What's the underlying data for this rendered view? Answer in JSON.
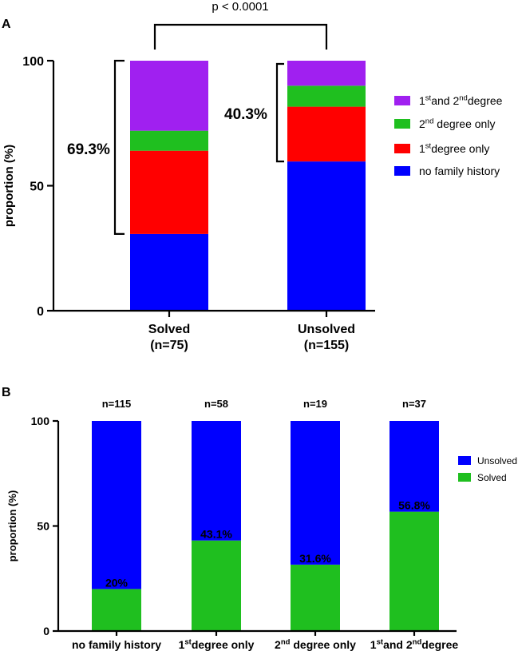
{
  "colors": {
    "purple": "#a020f0",
    "green": "#1fbf1f",
    "red": "#ff0000",
    "blue": "#0000ff"
  },
  "chart_data": [
    {
      "panel": "A",
      "type": "bar",
      "stacked": true,
      "title": "",
      "ylabel": "proportion (%)",
      "xlabel": "",
      "ylim": [
        0,
        100
      ],
      "yticks": [
        "0",
        "50",
        "100"
      ],
      "categories": [
        "Solved",
        "Unsolved"
      ],
      "category_subs": [
        "(n=75)",
        "(n=155)"
      ],
      "series": [
        {
          "name": "no family history",
          "color": "#0000ff",
          "values": [
            30.7,
            59.7
          ]
        },
        {
          "name": "1st degree only",
          "color": "#ff0000",
          "values": [
            33.3,
            21.9
          ]
        },
        {
          "name": "2nd degree only",
          "color": "#1fbf1f",
          "values": [
            8.0,
            8.4
          ]
        },
        {
          "name": "1st and 2nd degree",
          "color": "#a020f0",
          "values": [
            28.0,
            10.0
          ]
        }
      ],
      "legend": [
        {
          "base": "1",
          "sup": "st",
          "rest1": "and 2",
          "sup2": "nd",
          "rest2": "degree",
          "color": "#a020f0"
        },
        {
          "base": "2",
          "sup": "nd",
          "rest1": " degree only",
          "sup2": "",
          "rest2": "",
          "color": "#1fbf1f"
        },
        {
          "base": "1",
          "sup": "st",
          "rest1": "degree only",
          "sup2": "",
          "rest2": "",
          "color": "#ff0000"
        },
        {
          "base": "no family history",
          "sup": "",
          "rest1": "",
          "sup2": "",
          "rest2": "",
          "color": "#0000ff"
        }
      ],
      "legend_position": "right",
      "annotations": {
        "pvalue": "p < 0.0001",
        "solved_pct": "69.3%",
        "unsolved_pct": "40.3%"
      }
    },
    {
      "panel": "B",
      "type": "bar",
      "stacked": true,
      "title": "",
      "ylabel": "proportion (%)",
      "xlabel": "",
      "ylim": [
        0,
        100
      ],
      "yticks": [
        "0",
        "50",
        "100"
      ],
      "categories": [
        {
          "base": "no family history",
          "sup": "",
          "rest1": "",
          "sup2": "",
          "rest2": ""
        },
        {
          "base": "1",
          "sup": "st",
          "rest1": "degree only",
          "sup2": "",
          "rest2": ""
        },
        {
          "base": "2",
          "sup": "nd",
          "rest1": " degree only",
          "sup2": "",
          "rest2": ""
        },
        {
          "base": "1",
          "sup": "st",
          "rest1": "and 2",
          "sup2": "nd",
          "rest2": "degree"
        }
      ],
      "n_labels": [
        "n=115",
        "n=58",
        "n=19",
        "n=37"
      ],
      "series": [
        {
          "name": "Solved",
          "color": "#1fbf1f",
          "values": [
            20,
            43.1,
            31.6,
            56.8
          ]
        },
        {
          "name": "Unsolved",
          "color": "#0000ff",
          "values": [
            80,
            56.9,
            68.4,
            43.2
          ]
        }
      ],
      "data_labels": [
        "20%",
        "43.1%",
        "31.6%",
        "56.8%"
      ],
      "legend": [
        "Unsolved",
        "Solved"
      ],
      "legend_position": "right"
    }
  ],
  "panel_labels": [
    "A",
    "B"
  ]
}
